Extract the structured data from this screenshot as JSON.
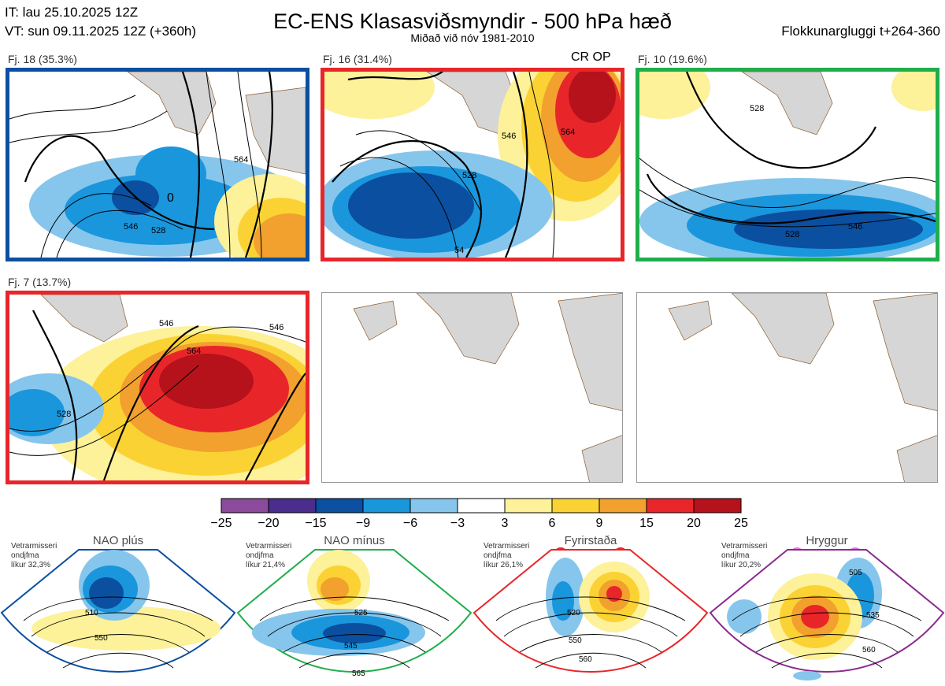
{
  "header": {
    "it": "IT: lau 25.10.2025 12Z",
    "vt": "VT: sun 09.11.2025 12Z  (+360h)",
    "title": "EC-ENS Klasasviðsmyndir - 500 hPa hæð",
    "subtitle": "Miðað við nóv 1981-2010",
    "window": "Flokkunargluggi t+264-360"
  },
  "colors": {
    "blue_border": "#0b4fa0",
    "red_border": "#e8262a",
    "green_border": "#1fae4b",
    "purple_border": "#8a2a8f",
    "land": "#d6d6d6",
    "coast": "#8a5a2b"
  },
  "panels": [
    {
      "label": "Fj. 18 (35.3%)",
      "tag": "",
      "border": "blue",
      "contours": [
        "528",
        "546",
        "564",
        "0"
      ]
    },
    {
      "label": "Fj. 16 (31.4%)",
      "tag": "CR OP",
      "border": "red",
      "contours": [
        "528",
        "546",
        "564",
        "54"
      ]
    },
    {
      "label": "Fj. 10 (19.6%)",
      "tag": "",
      "border": "green",
      "contours": [
        "528",
        "546",
        "528"
      ]
    },
    {
      "label": "Fj. 7 (13.7%)",
      "tag": "",
      "border": "red",
      "contours": [
        "528",
        "546",
        "564",
        "546"
      ]
    },
    {
      "label": "",
      "tag": "",
      "border": "none",
      "contours": []
    },
    {
      "label": "",
      "tag": "",
      "border": "none",
      "contours": []
    }
  ],
  "colorbar": {
    "ticks": [
      "−25",
      "−20",
      "−15",
      "−9",
      "−6",
      "−3",
      "3",
      "6",
      "9",
      "15",
      "20",
      "25"
    ],
    "colors": [
      "#8b4a9c",
      "#4b2d8e",
      "#0b4fa0",
      "#1a96dc",
      "#86c6ec",
      "#ffffff",
      "#fdf199",
      "#fbd233",
      "#f2a02e",
      "#e8262a",
      "#b5121b"
    ]
  },
  "regimes": [
    {
      "name": "NAO plús",
      "info": "Vetrarmisseri\nondjfma\nlíkur 32,3%",
      "dot_color": "#0b4fa0",
      "border": "#0b4fa0",
      "contours": [
        "510",
        "550"
      ]
    },
    {
      "name": "NAO mínus",
      "info": "Vetrarmisseri\nondjfma\nlíkur 21,4%",
      "dot_color": "#1fae4b",
      "border": "#1fae4b",
      "contours": [
        "525",
        "545",
        "565"
      ]
    },
    {
      "name": "Fyrirstaða",
      "info": "Vetrarmisseri\nondjfma\nlíkur 26,1%",
      "dot_color": "#e8262a",
      "border": "#e8262a",
      "contours": [
        "520",
        "550",
        "560"
      ]
    },
    {
      "name": "Hryggur",
      "info": "Vetrarmisseri\nondjfma\nlíkur 20,2%",
      "dot_color": "#e67be6",
      "border": "#8a2a8f",
      "contours": [
        "505",
        "535",
        "560"
      ]
    }
  ]
}
